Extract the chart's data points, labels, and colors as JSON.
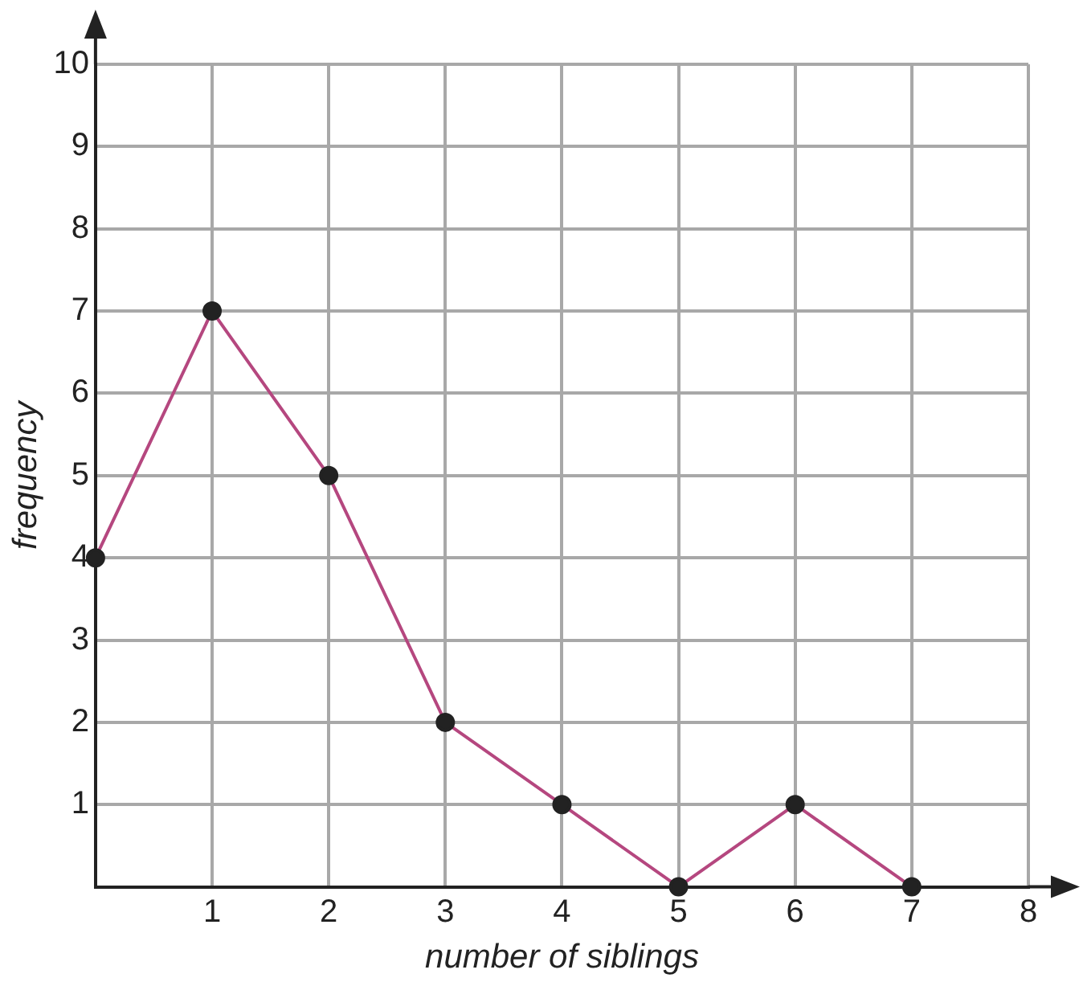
{
  "chart_data": {
    "type": "line",
    "xlabel": "number of siblings",
    "ylabel": "frequency",
    "x": [
      0,
      1,
      2,
      3,
      4,
      5,
      6,
      7
    ],
    "series": [
      {
        "color": "#b5477f",
        "values": [
          4,
          7,
          5,
          2,
          1,
          0,
          1,
          0
        ]
      }
    ],
    "xlim": [
      0,
      8
    ],
    "xticks": [
      {
        "value": 0,
        "label": null
      },
      1,
      2,
      3,
      4,
      5,
      6,
      7,
      8
    ],
    "ylim": [
      0,
      10
    ],
    "yticks": [
      {
        "value": 0,
        "label": null
      },
      1,
      2,
      3,
      4,
      5,
      6,
      7,
      8,
      9,
      10
    ],
    "grid": true,
    "legend": false,
    "marker": "circle",
    "line_style": "solid"
  }
}
